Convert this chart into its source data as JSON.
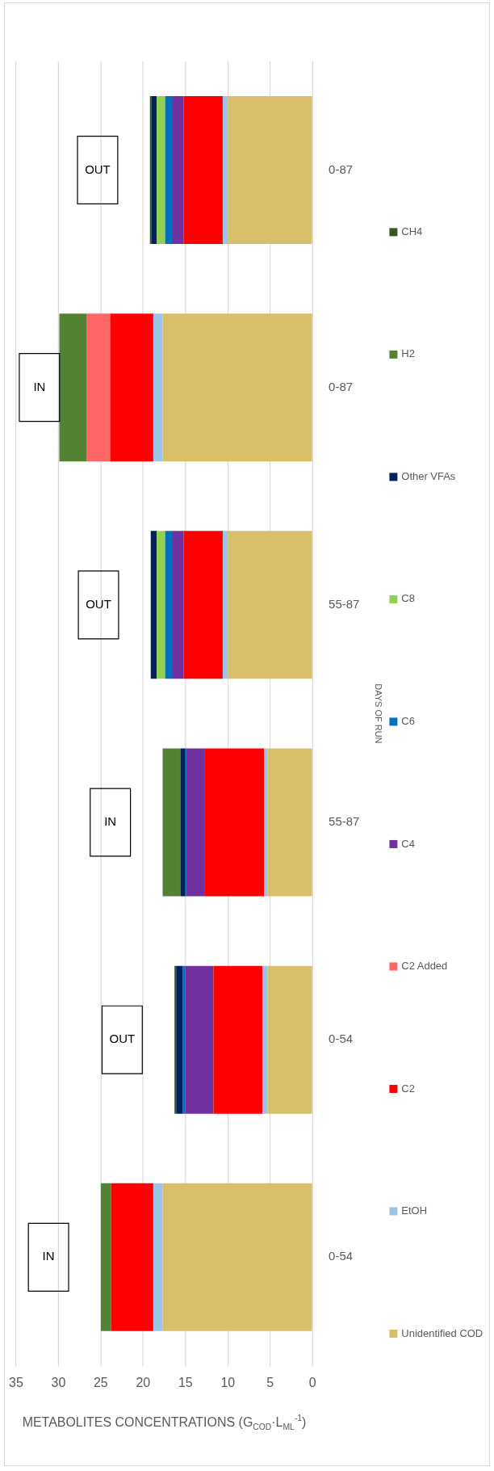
{
  "chart_data": {
    "type": "bar",
    "orientation": "horizontal",
    "stacked": true,
    "xlabel": "METABOLITES CONCENTRATIONS (G$_{COD}$·L$_{ML}$$^{-1}$)",
    "ylabel": "DAYS OF RUN",
    "categories": [
      "0-87",
      "0-87",
      "55-87",
      "55-87",
      "0-54",
      "0-54"
    ],
    "series": [
      {
        "name": "Unidentified COD",
        "color": "#d9bf6a",
        "values": [
          10.0,
          17.7,
          10.0,
          5.3,
          5.3,
          17.7
        ]
      },
      {
        "name": "EtOH",
        "color": "#9dc3e6",
        "values": [
          0.6,
          1.1,
          0.6,
          0.4,
          0.6,
          1.1
        ]
      },
      {
        "name": "C2",
        "color": "#ff0000",
        "values": [
          4.6,
          5.1,
          4.6,
          7.0,
          5.8,
          5.0
        ]
      },
      {
        "name": "C2 Added",
        "color": "#ff6666",
        "values": [
          null,
          2.8,
          null,
          null,
          null,
          null
        ]
      },
      {
        "name": "C4",
        "color": "#7030a0",
        "values": [
          1.4,
          null,
          1.4,
          2.2,
          3.3,
          null
        ]
      },
      {
        "name": "C6",
        "color": "#0070c0",
        "values": [
          0.8,
          null,
          0.8,
          0.1,
          0.3,
          null
        ]
      },
      {
        "name": "C8",
        "color": "#92d050",
        "values": [
          1.0,
          null,
          1.0,
          null,
          null,
          null
        ]
      },
      {
        "name": "Other VFAs",
        "color": "#002060",
        "values": [
          0.6,
          null,
          0.7,
          0.6,
          0.8,
          null
        ]
      },
      {
        "name": "H2",
        "color": "#548235",
        "values": [
          null,
          3.2,
          null,
          2.1,
          null,
          1.2
        ]
      },
      {
        "name": "CH4",
        "color": "#375623",
        "values": [
          0.2,
          null,
          null,
          null,
          0.2,
          null
        ]
      }
    ],
    "xlim": [
      35,
      0
    ],
    "xticks": [
      0,
      5,
      10,
      15,
      20,
      25,
      30,
      35
    ],
    "grid": "x",
    "legend": "right",
    "annotations": [
      "OUT",
      "IN",
      "OUT",
      "IN",
      "OUT",
      "IN"
    ]
  }
}
